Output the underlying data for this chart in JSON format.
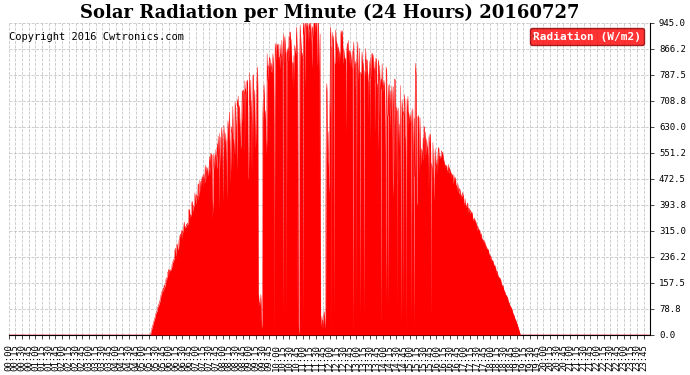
{
  "title": "Solar Radiation per Minute (24 Hours) 20160727",
  "copyright_text": "Copyright 2016 Cwtronics.com",
  "legend_label": "Radiation (W/m2)",
  "y_ticks": [
    0.0,
    78.8,
    157.5,
    236.2,
    315.0,
    393.8,
    472.5,
    551.2,
    630.0,
    708.8,
    787.5,
    866.2,
    945.0
  ],
  "y_min": 0.0,
  "y_max": 945.0,
  "fill_color": "#FF0000",
  "line_color": "#FF0000",
  "background_color": "#FFFFFF",
  "grid_color": "#C0C0C0",
  "title_fontsize": 13,
  "copyright_fontsize": 7.5,
  "tick_fontsize": 6.5,
  "legend_fontsize": 8
}
